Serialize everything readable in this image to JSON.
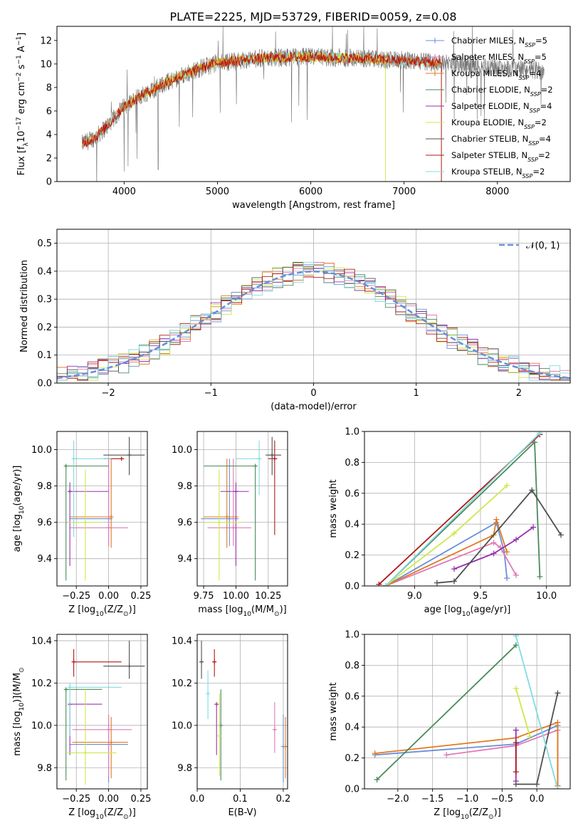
{
  "figure_title": "PLATE=2225, MJD=53729, FIBERID=0059, z=0.08",
  "colors": {
    "Chabrier MILES": "#6a8fd8",
    "Salpeter MILES": "#e07ab8",
    "Kroupa MILES": "#e07a20",
    "Chabrier ELODIE": "#4a8a5a",
    "Salpeter ELODIE": "#9a30b0",
    "Kroupa ELODIE": "#cde84a",
    "Chabrier STELIB": "#505050",
    "Salpeter STELIB": "#b01818",
    "Kroupa STELIB": "#80dce0",
    "data": "#707070",
    "normal": "#6a8fd8"
  },
  "chart_data": [
    {
      "id": "spectrum",
      "type": "line",
      "xlabel": "wavelength [Angstrom, rest frame]",
      "ylabel": "Flux [f",
      "ylabel_sub": "λ",
      "ylabel_mid": "10",
      "ylabel_sup1": "−17",
      "ylabel_mid2": " erg cm",
      "ylabel_sup2": "−2",
      "ylabel_mid3": " s",
      "ylabel_sup3": "−1",
      "ylabel_end": " A",
      "ylabel_sup4": "−1",
      "ylabel_close": "]",
      "xlim": [
        3280,
        8780
      ],
      "ylim": [
        0,
        13.2
      ],
      "xticks": [
        4000,
        5000,
        6000,
        7000,
        8000
      ],
      "yticks": [
        0,
        2,
        4,
        6,
        8,
        10,
        12
      ],
      "grid": false,
      "legend_position": "right",
      "legend": [
        {
          "name": "Chabrier MILES, N",
          "sub": "SSP",
          "tail": "=5"
        },
        {
          "name": "Salpeter MILES, N",
          "sub": "SSP",
          "tail": "=5"
        },
        {
          "name": "Kroupa MILES, N",
          "sub": "SSP",
          "tail": "=4"
        },
        {
          "name": "Chabrier ELODIE, N",
          "sub": "SSP",
          "tail": "=2"
        },
        {
          "name": "Salpeter ELODIE, N",
          "sub": "SSP",
          "tail": "=4"
        },
        {
          "name": "Kroupa ELODIE, N",
          "sub": "SSP",
          "tail": "=2"
        },
        {
          "name": "Chabrier STELIB, N",
          "sub": "SSP",
          "tail": "=4"
        },
        {
          "name": "Salpeter STELIB, N",
          "sub": "SSP",
          "tail": "=2"
        },
        {
          "name": "Kroupa STELIB, N",
          "sub": "SSP",
          "tail": "=2"
        }
      ],
      "continuum": [
        [
          3550,
          3.2
        ],
        [
          3700,
          3.8
        ],
        [
          3850,
          5.0
        ],
        [
          4000,
          6.4
        ],
        [
          4200,
          7.4
        ],
        [
          4500,
          8.6
        ],
        [
          4800,
          9.6
        ],
        [
          5000,
          10.1
        ],
        [
          5500,
          10.5
        ],
        [
          6000,
          10.6
        ],
        [
          6500,
          10.5
        ],
        [
          7000,
          10.3
        ],
        [
          7400,
          10.1
        ],
        [
          8000,
          9.7
        ],
        [
          8500,
          9.4
        ]
      ],
      "model_ranges": [
        {
          "name": "Kroupa STELIB",
          "from": 3550,
          "to": 7400
        },
        {
          "name": "Kroupa ELODIE",
          "from": 4000,
          "to": 6800
        },
        {
          "name": "Kroupa MILES",
          "from": 3550,
          "to": 7400
        },
        {
          "name": "Salpeter STELIB",
          "from": 3550,
          "to": 7400
        }
      ]
    },
    {
      "id": "residuals",
      "type": "step",
      "xlabel": "(data-model)/error",
      "ylabel": "Normed distribution",
      "xlim": [
        -2.5,
        2.5
      ],
      "ylim": [
        0,
        0.55
      ],
      "xticks": [
        -2,
        -1,
        0,
        1,
        2
      ],
      "yticks": [
        0.0,
        0.1,
        0.2,
        0.3,
        0.4,
        0.5
      ],
      "grid": true,
      "legend_position": "upper right",
      "legend": [
        {
          "name": "𝒩(0, 1)"
        }
      ],
      "bin_width": 0.1
    },
    {
      "id": "age-Z",
      "type": "errorbar",
      "xlabel": "Z [log",
      "xlabel_sub": "10",
      "xlabel_tail": "(Z/Z",
      "xlabel_sub2": "⊙",
      "xlabel_end": ")]",
      "ylabel": "age  [log",
      "ylabel_sub": "10",
      "ylabel_tail": "(age/yr)]",
      "xlim": [
        -0.4,
        0.3
      ],
      "ylim": [
        9.25,
        10.1
      ],
      "xticks": [
        -0.25,
        0.0,
        0.25
      ],
      "yticks": [
        9.4,
        9.6,
        9.8,
        10.0
      ],
      "grid": true,
      "points": [
        {
          "m": "Chabrier MILES",
          "x": 0.0,
          "y": 9.62,
          "xlo": -0.3,
          "xhi": 0.03,
          "ylo": 9.47,
          "yhi": 9.95
        },
        {
          "m": "Salpeter MILES",
          "x": 0.0,
          "y": 9.57,
          "xlo": -0.3,
          "xhi": 0.15,
          "ylo": 9.47,
          "yhi": 9.95
        },
        {
          "m": "Kroupa MILES",
          "x": 0.02,
          "y": 9.63,
          "xlo": -0.3,
          "xhi": 0.03,
          "ylo": 9.46,
          "yhi": 9.95
        },
        {
          "m": "Chabrier ELODIE",
          "x": -0.33,
          "y": 9.91,
          "xlo": -0.34,
          "xhi": 0.0,
          "ylo": 9.28,
          "yhi": 9.91
        },
        {
          "m": "Salpeter ELODIE",
          "x": -0.3,
          "y": 9.77,
          "xlo": -0.3,
          "xhi": 0.0,
          "ylo": 9.36,
          "yhi": 9.82
        },
        {
          "m": "Kroupa ELODIE",
          "x": -0.18,
          "y": 9.6,
          "xlo": -0.31,
          "xhi": -0.05,
          "ylo": 9.28,
          "yhi": 9.89
        },
        {
          "m": "Chabrier STELIB",
          "x": 0.16,
          "y": 9.97,
          "xlo": -0.04,
          "xhi": 0.28,
          "ylo": 9.86,
          "yhi": 10.07
        },
        {
          "m": "Salpeter STELIB",
          "x": 0.1,
          "y": 9.95,
          "xlo": -0.04,
          "xhi": 0.12,
          "ylo": 9.95,
          "yhi": 9.95
        },
        {
          "m": "Kroupa STELIB",
          "x": -0.27,
          "y": 9.95,
          "xlo": -0.28,
          "xhi": 0.02,
          "ylo": 9.52,
          "yhi": 10.05
        }
      ]
    },
    {
      "id": "age-mass",
      "type": "errorbar",
      "xlabel": "mass [log",
      "xlabel_sub": "10",
      "xlabel_tail": "(M/M",
      "xlabel_sub2": "⊙",
      "xlabel_end": ")]",
      "ylabel": "",
      "xlim": [
        9.7,
        10.4
      ],
      "ylim": [
        9.25,
        10.1
      ],
      "xticks": [
        9.75,
        10.0,
        10.25
      ],
      "yticks": [
        9.4,
        9.6,
        9.8,
        10.0
      ],
      "grid": true,
      "points": [
        {
          "m": "Chabrier MILES",
          "x": 9.95,
          "y": 9.62,
          "xlo": 9.73,
          "xhi": 10.02,
          "ylo": 9.47,
          "yhi": 9.95
        },
        {
          "m": "Salpeter MILES",
          "x": 9.98,
          "y": 9.57,
          "xlo": 9.78,
          "xhi": 10.12,
          "ylo": 9.47,
          "yhi": 9.95
        },
        {
          "m": "Kroupa MILES",
          "x": 9.93,
          "y": 9.63,
          "xlo": 9.75,
          "xhi": 10.02,
          "ylo": 9.46,
          "yhi": 9.95
        },
        {
          "m": "Chabrier ELODIE",
          "x": 10.15,
          "y": 9.91,
          "xlo": 9.75,
          "xhi": 10.15,
          "ylo": 9.28,
          "yhi": 9.91
        },
        {
          "m": "Salpeter ELODIE",
          "x": 10.0,
          "y": 9.77,
          "xlo": 9.88,
          "xhi": 10.1,
          "ylo": 9.36,
          "yhi": 9.82
        },
        {
          "m": "Kroupa ELODIE",
          "x": 9.87,
          "y": 9.6,
          "xlo": 9.75,
          "xhi": 10.05,
          "ylo": 9.28,
          "yhi": 9.89
        },
        {
          "m": "Chabrier STELIB",
          "x": 10.28,
          "y": 9.97,
          "xlo": 10.23,
          "xhi": 10.35,
          "ylo": 9.86,
          "yhi": 10.07
        },
        {
          "m": "Salpeter STELIB",
          "x": 10.3,
          "y": 9.95,
          "xlo": 10.25,
          "xhi": 10.32,
          "ylo": 9.53,
          "yhi": 10.05
        },
        {
          "m": "Kroupa STELIB",
          "x": 10.18,
          "y": 9.95,
          "xlo": 10.0,
          "xhi": 10.2,
          "ylo": 9.75,
          "yhi": 10.05
        }
      ]
    },
    {
      "id": "weight-age",
      "type": "line",
      "xlabel": "age  [log",
      "xlabel_sub": "10",
      "xlabel_tail": "(age/yr)]",
      "ylabel": "mass weight",
      "xlim": [
        8.62,
        10.18
      ],
      "ylim": [
        0,
        1
      ],
      "xticks": [
        9.0,
        9.5,
        10.0
      ],
      "yticks": [
        0.0,
        0.2,
        0.4,
        0.6,
        0.8,
        1.0
      ],
      "grid": true,
      "series": [
        {
          "m": "Chabrier MILES",
          "pts": [
            [
              8.78,
              0.0
            ],
            [
              9.62,
              0.41
            ],
            [
              9.68,
              0.22
            ],
            [
              9.7,
              0.05
            ]
          ]
        },
        {
          "m": "Salpeter MILES",
          "pts": [
            [
              8.78,
              0.0
            ],
            [
              9.6,
              0.28
            ],
            [
              9.65,
              0.25
            ],
            [
              9.77,
              0.07
            ]
          ]
        },
        {
          "m": "Kroupa MILES",
          "pts": [
            [
              8.78,
              0.0
            ],
            [
              9.6,
              0.33
            ],
            [
              9.62,
              0.43
            ],
            [
              9.7,
              0.22
            ]
          ]
        },
        {
          "m": "Chabrier ELODIE",
          "pts": [
            [
              8.78,
              0.0
            ],
            [
              9.91,
              0.93
            ],
            [
              9.95,
              0.06
            ]
          ]
        },
        {
          "m": "Salpeter ELODIE",
          "pts": [
            [
              9.3,
              0.11
            ],
            [
              9.6,
              0.21
            ],
            [
              9.77,
              0.3
            ],
            [
              9.9,
              0.38
            ]
          ]
        },
        {
          "m": "Kroupa ELODIE",
          "pts": [
            [
              8.78,
              0.0
            ],
            [
              9.3,
              0.34
            ],
            [
              9.7,
              0.65
            ]
          ]
        },
        {
          "m": "Chabrier STELIB",
          "pts": [
            [
              9.17,
              0.02
            ],
            [
              9.3,
              0.03
            ],
            [
              9.89,
              0.62
            ],
            [
              10.11,
              0.33
            ]
          ]
        },
        {
          "m": "Salpeter STELIB",
          "pts": [
            [
              8.73,
              0.01
            ],
            [
              9.95,
              0.98
            ]
          ]
        },
        {
          "m": "Kroupa STELIB",
          "pts": [
            [
              8.78,
              0.0
            ],
            [
              9.95,
              0.99
            ]
          ]
        }
      ]
    },
    {
      "id": "mass-Z",
      "type": "errorbar",
      "xlabel": "Z [log",
      "xlabel_sub": "10",
      "xlabel_tail": "(Z/Z",
      "xlabel_sub2": "⊙",
      "xlabel_end": ")]",
      "ylabel": "mass [log",
      "ylabel_sub": "10",
      "ylabel_tail": "(M/M",
      "ylabel_sub2": "⊙",
      "ylabel_end": ")]",
      "xlim": [
        -0.4,
        0.3
      ],
      "ylim": [
        9.7,
        10.43
      ],
      "xticks": [
        -0.25,
        0.0,
        0.25
      ],
      "yticks": [
        9.8,
        10.0,
        10.2,
        10.4
      ],
      "grid": true,
      "points": [
        {
          "m": "Chabrier MILES",
          "x": 0.0,
          "y": 9.91,
          "xlo": -0.3,
          "xhi": 0.15,
          "ylo": 9.73,
          "yhi": 10.05
        },
        {
          "m": "Salpeter MILES",
          "x": 0.0,
          "y": 9.98,
          "xlo": -0.28,
          "xhi": 0.18,
          "ylo": 9.76,
          "yhi": 10.05
        },
        {
          "m": "Kroupa MILES",
          "x": 0.02,
          "y": 9.92,
          "xlo": -0.28,
          "xhi": 0.15,
          "ylo": 9.75,
          "yhi": 10.04
        },
        {
          "m": "Chabrier ELODIE",
          "x": -0.33,
          "y": 10.17,
          "xlo": -0.34,
          "xhi": -0.05,
          "ylo": 9.74,
          "yhi": 10.17
        },
        {
          "m": "Salpeter ELODIE",
          "x": -0.3,
          "y": 10.1,
          "xlo": -0.3,
          "xhi": -0.05,
          "ylo": 9.86,
          "yhi": 10.1
        },
        {
          "m": "Kroupa ELODIE",
          "x": -0.18,
          "y": 9.87,
          "xlo": -0.32,
          "xhi": 0.06,
          "ylo": 9.72,
          "yhi": 10.17
        },
        {
          "m": "Chabrier STELIB",
          "x": 0.16,
          "y": 10.28,
          "xlo": -0.04,
          "xhi": 0.28,
          "ylo": 10.22,
          "yhi": 10.4
        },
        {
          "m": "Salpeter STELIB",
          "x": -0.27,
          "y": 10.3,
          "xlo": -0.27,
          "xhi": 0.1,
          "ylo": 10.23,
          "yhi": 10.36
        },
        {
          "m": "Kroupa STELIB",
          "x": -0.3,
          "y": 10.18,
          "xlo": -0.3,
          "xhi": 0.1,
          "ylo": 9.95,
          "yhi": 10.2
        }
      ]
    },
    {
      "id": "mass-ebv",
      "type": "errorbar",
      "xlabel": "E(B-V)",
      "ylabel": "",
      "xlim": [
        0.0,
        0.21
      ],
      "ylim": [
        9.7,
        10.43
      ],
      "xticks": [
        0.0,
        0.1,
        0.2
      ],
      "yticks": [
        9.8,
        10.0,
        10.2,
        10.4
      ],
      "grid": true,
      "points": [
        {
          "m": "Chabrier MILES",
          "x": 0.2,
          "y": 9.9,
          "xlo": 0.2,
          "xhi": 0.2,
          "ylo": 9.73,
          "yhi": 10.05
        },
        {
          "m": "Salpeter MILES",
          "x": 0.18,
          "y": 9.98,
          "xlo": 0.18,
          "xhi": 0.18,
          "ylo": 9.87,
          "yhi": 10.11
        },
        {
          "m": "Kroupa MILES",
          "x": 0.205,
          "y": 9.9,
          "xlo": 0.205,
          "xhi": 0.205,
          "ylo": 9.75,
          "yhi": 10.04
        },
        {
          "m": "Chabrier ELODIE",
          "x": 0.055,
          "y": 10.0,
          "xlo": 0.055,
          "xhi": 0.055,
          "ylo": 9.74,
          "yhi": 10.17
        },
        {
          "m": "Salpeter ELODIE",
          "x": 0.045,
          "y": 10.1,
          "xlo": 0.045,
          "xhi": 0.045,
          "ylo": 9.86,
          "yhi": 10.1
        },
        {
          "m": "Kroupa ELODIE",
          "x": 0.052,
          "y": 9.95,
          "xlo": 0.052,
          "xhi": 0.052,
          "ylo": 9.76,
          "yhi": 10.15
        },
        {
          "m": "Chabrier STELIB",
          "x": 0.01,
          "y": 10.3,
          "xlo": 0.01,
          "xhi": 0.01,
          "ylo": 10.22,
          "yhi": 10.4
        },
        {
          "m": "Salpeter STELIB",
          "x": 0.04,
          "y": 10.3,
          "xlo": 0.04,
          "xhi": 0.04,
          "ylo": 10.23,
          "yhi": 10.36
        },
        {
          "m": "Kroupa STELIB",
          "x": 0.025,
          "y": 10.15,
          "xlo": 0.025,
          "xhi": 0.025,
          "ylo": 10.03,
          "yhi": 10.26
        }
      ]
    },
    {
      "id": "weight-Z",
      "type": "line",
      "xlabel": "Z [log",
      "xlabel_sub": "10",
      "xlabel_tail": "(Z/Z",
      "xlabel_sub2": "⊙",
      "xlabel_end": ")]",
      "ylabel": "mass weight",
      "xlim": [
        -2.48,
        0.48
      ],
      "ylim": [
        0,
        1
      ],
      "xticks": [
        -2.0,
        -1.5,
        -1.0,
        -0.5,
        0.0
      ],
      "yticks": [
        0.0,
        0.2,
        0.4,
        0.6,
        0.8,
        1.0
      ],
      "grid": true,
      "series": [
        {
          "m": "Chabrier MILES",
          "pts": [
            [
              -2.33,
              0.22
            ],
            [
              -0.3,
              0.29
            ],
            [
              0.3,
              0.41
            ],
            [
              0.3,
              0.02
            ]
          ]
        },
        {
          "m": "Salpeter MILES",
          "pts": [
            [
              -1.3,
              0.22
            ],
            [
              -0.3,
              0.28
            ],
            [
              0.3,
              0.38
            ],
            [
              0.3,
              0.02
            ]
          ]
        },
        {
          "m": "Kroupa MILES",
          "pts": [
            [
              -2.33,
              0.23
            ],
            [
              -0.3,
              0.33
            ],
            [
              0.3,
              0.43
            ],
            [
              0.3,
              0.02
            ]
          ]
        },
        {
          "m": "Chabrier ELODIE",
          "pts": [
            [
              -2.3,
              0.06
            ],
            [
              -0.3,
              0.93
            ]
          ]
        },
        {
          "m": "Salpeter ELODIE",
          "pts": [
            [
              -0.3,
              0.38
            ],
            [
              -0.3,
              0.05
            ]
          ]
        },
        {
          "m": "Kroupa ELODIE",
          "pts": [
            [
              -0.3,
              0.65
            ],
            [
              -0.1,
              0.34
            ]
          ]
        },
        {
          "m": "Chabrier STELIB",
          "pts": [
            [
              -0.3,
              0.03
            ],
            [
              0.0,
              0.03
            ],
            [
              0.3,
              0.62
            ]
          ]
        },
        {
          "m": "Salpeter STELIB",
          "pts": [
            [
              -0.3,
              0.11
            ],
            [
              -0.3,
              0.3
            ]
          ]
        },
        {
          "m": "Kroupa STELIB",
          "pts": [
            [
              -0.3,
              0.99
            ],
            [
              0.3,
              0.0
            ]
          ]
        }
      ]
    }
  ]
}
